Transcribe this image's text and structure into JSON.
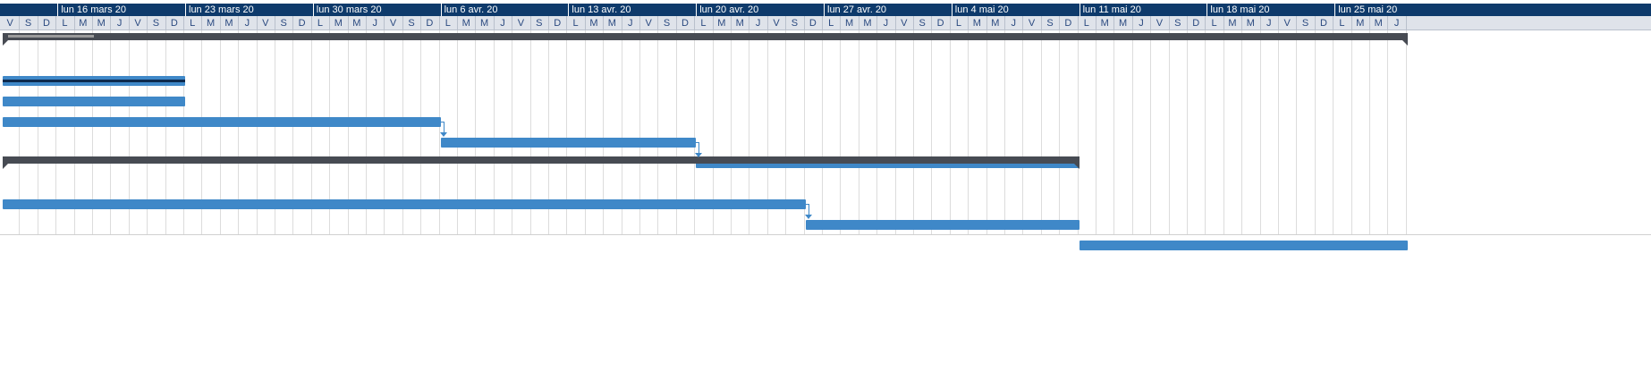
{
  "timescale": {
    "weeks": [
      "lun 16 mars 20",
      "lun 23 mars 20",
      "lun 30 mars 20",
      "lun 6 avr. 20",
      "lun 13 avr. 20",
      "lun 20 avr. 20",
      "lun 27 avr. 20",
      "lun 4 mai 20",
      "lun 11 mai 20",
      "lun 18 mai 20",
      "lun 25 mai 20"
    ],
    "days": [
      "V",
      "S",
      "D",
      "L",
      "M",
      "M",
      "J",
      "V",
      "S",
      "D",
      "L",
      "M",
      "M",
      "J",
      "V",
      "S",
      "D",
      "L",
      "M",
      "M",
      "J",
      "V",
      "S",
      "D",
      "L",
      "M",
      "M",
      "J",
      "V",
      "S",
      "D",
      "L",
      "M",
      "M",
      "J",
      "V",
      "S",
      "D",
      "L",
      "M",
      "M",
      "J",
      "V",
      "S",
      "D",
      "L",
      "M",
      "M",
      "J",
      "V",
      "S",
      "D",
      "L",
      "M",
      "M",
      "J",
      "V",
      "S",
      "D",
      "L",
      "M",
      "M",
      "J",
      "V",
      "S",
      "D",
      "L",
      "M",
      "M",
      "J",
      "V",
      "S",
      "D",
      "L",
      "M",
      "M",
      "J"
    ]
  },
  "colors": {
    "header_bg": "#0e3a6b",
    "day_bg": "#dfe3ea",
    "task_bar": "#3f88c8",
    "summary_bar": "#474b53",
    "progress": "#0d2a4e"
  },
  "rows": [
    {
      "type": "summary",
      "start": 0,
      "end": 77,
      "progress_end": 5
    },
    {
      "type": "task",
      "start": 0,
      "end": 10,
      "progress": 1.0
    },
    {
      "type": "task",
      "start": 0,
      "end": 10
    },
    {
      "type": "task",
      "start": 0,
      "end": 24
    },
    {
      "type": "task",
      "start": 24,
      "end": 38
    },
    {
      "type": "task",
      "start": 38,
      "end": 59
    },
    {
      "type": "summary",
      "start": 0,
      "end": 59
    },
    {
      "type": "task",
      "start": 0,
      "end": 44
    },
    {
      "type": "task",
      "start": 44,
      "end": 59
    },
    {
      "type": "task",
      "start": 59,
      "end": 77
    }
  ],
  "links": [
    {
      "from": 3,
      "to": 4
    },
    {
      "from": 4,
      "to": 5
    },
    {
      "from": 7,
      "to": 8
    }
  ]
}
